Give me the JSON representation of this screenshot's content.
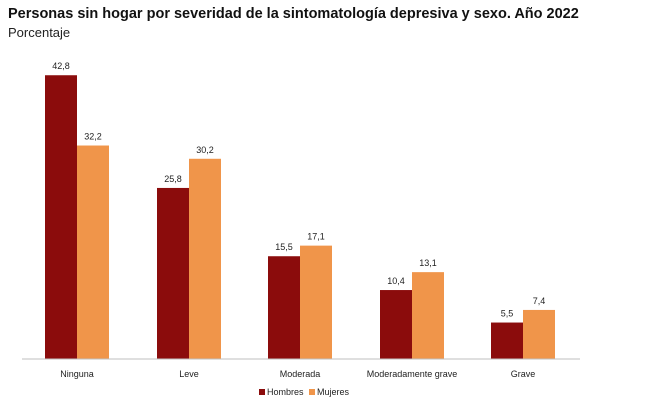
{
  "chart_data": {
    "type": "bar",
    "title": "Personas sin hogar por severidad de la sintomatología depresiva y sexo. Año 2022",
    "subtitle": "Porcentaje",
    "categories": [
      "Ninguna",
      "Leve",
      "Moderada",
      "Moderadamente grave",
      "Grave"
    ],
    "series": [
      {
        "name": "Hombres",
        "color": "#8b0c0c",
        "values": [
          42.8,
          25.8,
          15.5,
          10.4,
          5.5
        ]
      },
      {
        "name": "Mujeres",
        "color": "#f0954a",
        "values": [
          32.2,
          30.2,
          17.1,
          13.1,
          7.4
        ]
      }
    ],
    "value_labels": {
      "Hombres": [
        "42,8",
        "25,8",
        "15,5",
        "10,4",
        "5,5"
      ],
      "Mujeres": [
        "32,2",
        "30,2",
        "17,1",
        "13,1",
        "7,4"
      ]
    },
    "ylim": [
      0,
      45
    ],
    "grid": false,
    "legend_position": "bottom"
  }
}
